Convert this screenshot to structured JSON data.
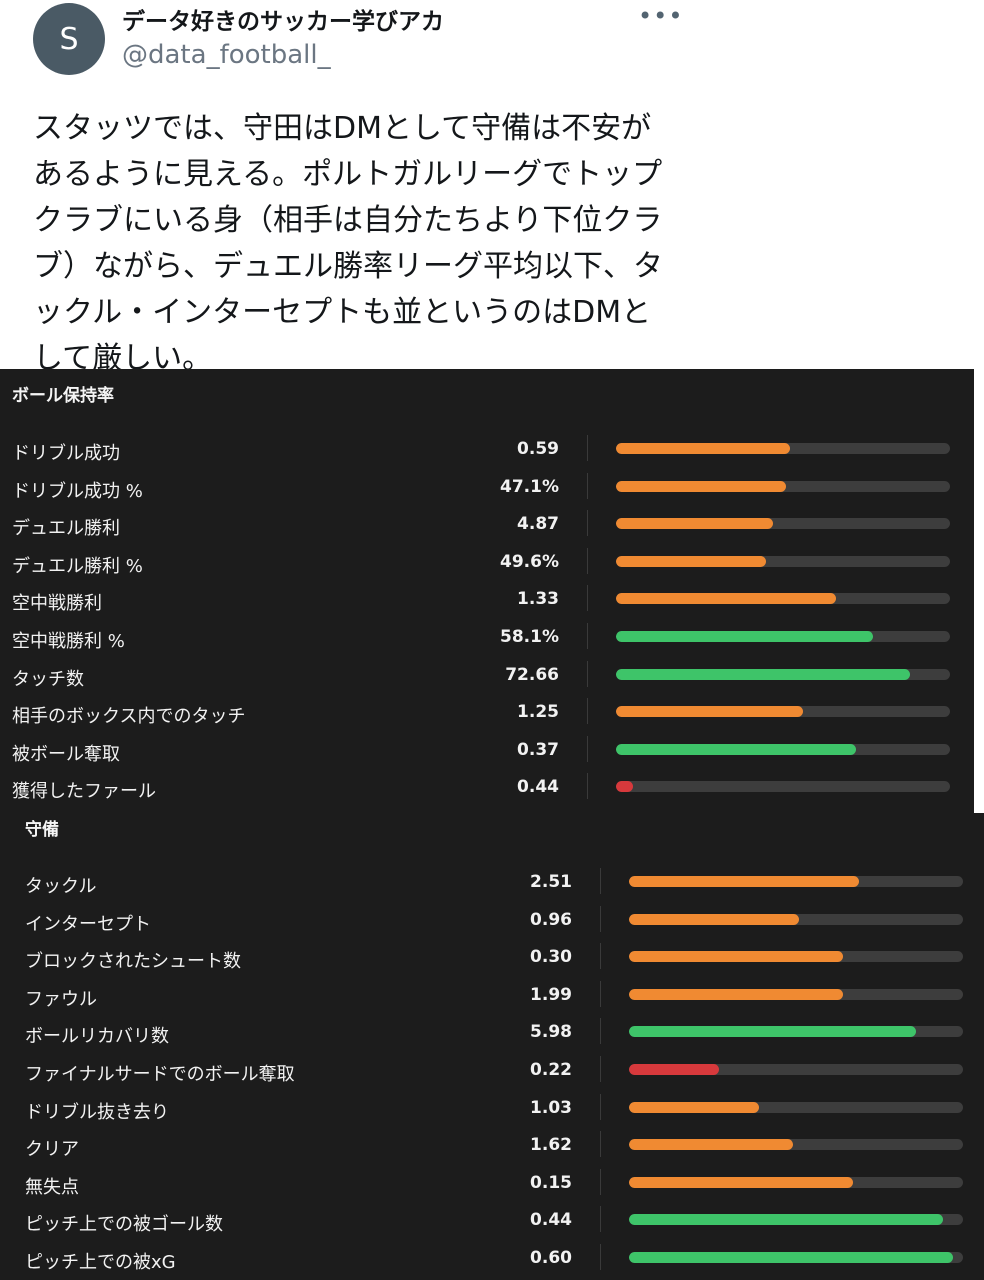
{
  "account": {
    "avatar_letter": "S",
    "display_name": "データ好きのサッカー学びアカ",
    "handle": "@data_football_",
    "more_icon": "more-horizontal-icon"
  },
  "tweet": {
    "lines": [
      "スタッツでは、守田はDMとして守備は不安が",
      "あるように見える。ポルトガルリーグでトップ",
      "クラブにいる身（相手は自分たちより下位クラ",
      "ブ）ながら、デュエル勝率リーグ平均以下、タ",
      "ックル・インターセプトも並というのはDMと",
      "して厳しい。"
    ]
  },
  "colors": {
    "orange": "#f08a32",
    "green": "#3ec469",
    "red": "#d7393c",
    "track": "#3d3d3d"
  },
  "sections": [
    {
      "title": "ボール保持率",
      "rows": [
        {
          "label": "ドリブル成功",
          "value": "0.59",
          "fill": 0.52,
          "color": "orange"
        },
        {
          "label": "ドリブル成功 %",
          "value": "47.1%",
          "fill": 0.51,
          "color": "orange"
        },
        {
          "label": "デュエル勝利",
          "value": "4.87",
          "fill": 0.47,
          "color": "orange"
        },
        {
          "label": "デュエル勝利 %",
          "value": "49.6%",
          "fill": 0.45,
          "color": "orange"
        },
        {
          "label": "空中戦勝利",
          "value": "1.33",
          "fill": 0.66,
          "color": "orange"
        },
        {
          "label": "空中戦勝利 %",
          "value": "58.1%",
          "fill": 0.77,
          "color": "green"
        },
        {
          "label": "タッチ数",
          "value": "72.66",
          "fill": 0.88,
          "color": "green"
        },
        {
          "label": "相手のボックス内でのタッチ",
          "value": "1.25",
          "fill": 0.56,
          "color": "orange"
        },
        {
          "label": "被ボール奪取",
          "value": "0.37",
          "fill": 0.72,
          "color": "green"
        },
        {
          "label": "獲得したファール",
          "value": "0.44",
          "fill": 0.05,
          "color": "red"
        }
      ]
    },
    {
      "title": "守備",
      "rows": [
        {
          "label": "タックル",
          "value": "2.51",
          "fill": 0.69,
          "color": "orange"
        },
        {
          "label": "インターセプト",
          "value": "0.96",
          "fill": 0.51,
          "color": "orange"
        },
        {
          "label": "ブロックされたシュート数",
          "value": "0.30",
          "fill": 0.64,
          "color": "orange"
        },
        {
          "label": "ファウル",
          "value": "1.99",
          "fill": 0.64,
          "color": "orange"
        },
        {
          "label": "ボールリカバリ数",
          "value": "5.98",
          "fill": 0.86,
          "color": "green"
        },
        {
          "label": "ファイナルサードでのボール奪取",
          "value": "0.22",
          "fill": 0.27,
          "color": "red"
        },
        {
          "label": "ドリブル抜き去り",
          "value": "1.03",
          "fill": 0.39,
          "color": "orange"
        },
        {
          "label": "クリア",
          "value": "1.62",
          "fill": 0.49,
          "color": "orange"
        },
        {
          "label": "無失点",
          "value": "0.15",
          "fill": 0.67,
          "color": "orange"
        },
        {
          "label": "ピッチ上での被ゴール数",
          "value": "0.44",
          "fill": 0.94,
          "color": "green"
        },
        {
          "label": "ピッチ上での被xG",
          "value": "0.60",
          "fill": 0.97,
          "color": "green"
        }
      ]
    }
  ]
}
